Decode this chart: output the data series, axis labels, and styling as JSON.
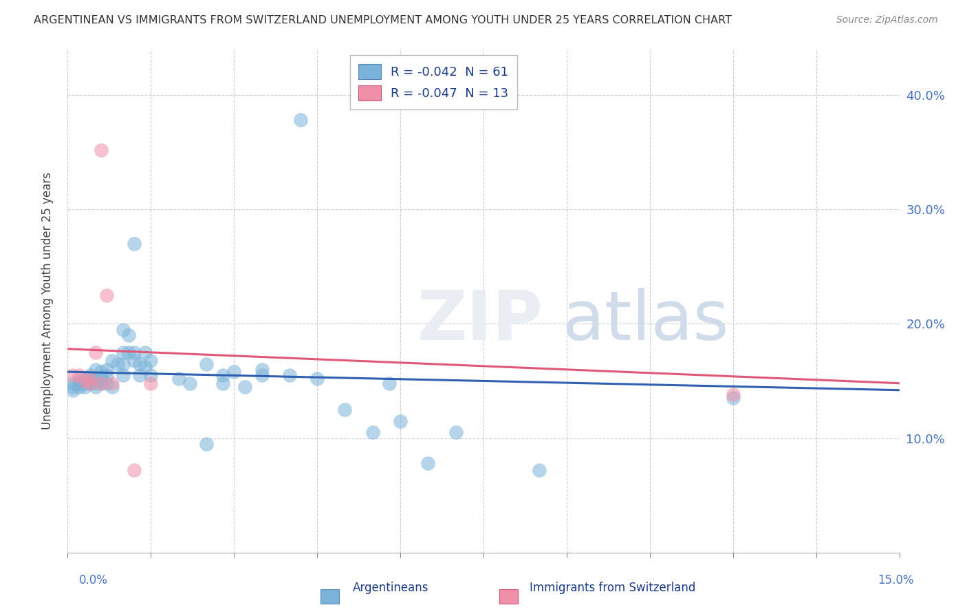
{
  "title": "ARGENTINEAN VS IMMIGRANTS FROM SWITZERLAND UNEMPLOYMENT AMONG YOUTH UNDER 25 YEARS CORRELATION CHART",
  "source": "Source: ZipAtlas.com",
  "ylabel": "Unemployment Among Youth under 25 years",
  "x_min": 0.0,
  "x_max": 0.15,
  "y_min": 0.0,
  "y_max": 0.44,
  "legend_entry1": "R = -0.042  N = 61",
  "legend_entry2": "R = -0.047  N = 13",
  "legend_label1": "Argentineans",
  "legend_label2": "Immigrants from Switzerland",
  "argentina_scatter": [
    [
      0.001,
      0.148
    ],
    [
      0.001,
      0.145
    ],
    [
      0.001,
      0.142
    ],
    [
      0.002,
      0.148
    ],
    [
      0.002,
      0.15
    ],
    [
      0.002,
      0.145
    ],
    [
      0.003,
      0.152
    ],
    [
      0.003,
      0.148
    ],
    [
      0.003,
      0.145
    ],
    [
      0.004,
      0.155
    ],
    [
      0.004,
      0.148
    ],
    [
      0.004,
      0.152
    ],
    [
      0.005,
      0.16
    ],
    [
      0.005,
      0.148
    ],
    [
      0.005,
      0.152
    ],
    [
      0.005,
      0.145
    ],
    [
      0.006,
      0.158
    ],
    [
      0.006,
      0.148
    ],
    [
      0.006,
      0.152
    ],
    [
      0.007,
      0.155
    ],
    [
      0.007,
      0.148
    ],
    [
      0.007,
      0.16
    ],
    [
      0.008,
      0.168
    ],
    [
      0.008,
      0.145
    ],
    [
      0.009,
      0.165
    ],
    [
      0.01,
      0.195
    ],
    [
      0.01,
      0.175
    ],
    [
      0.01,
      0.155
    ],
    [
      0.01,
      0.165
    ],
    [
      0.011,
      0.19
    ],
    [
      0.011,
      0.175
    ],
    [
      0.012,
      0.27
    ],
    [
      0.012,
      0.175
    ],
    [
      0.012,
      0.168
    ],
    [
      0.013,
      0.155
    ],
    [
      0.013,
      0.165
    ],
    [
      0.014,
      0.162
    ],
    [
      0.014,
      0.175
    ],
    [
      0.015,
      0.168
    ],
    [
      0.015,
      0.155
    ],
    [
      0.02,
      0.152
    ],
    [
      0.022,
      0.148
    ],
    [
      0.025,
      0.165
    ],
    [
      0.025,
      0.095
    ],
    [
      0.028,
      0.155
    ],
    [
      0.028,
      0.148
    ],
    [
      0.03,
      0.158
    ],
    [
      0.032,
      0.145
    ],
    [
      0.035,
      0.155
    ],
    [
      0.035,
      0.16
    ],
    [
      0.04,
      0.155
    ],
    [
      0.042,
      0.378
    ],
    [
      0.045,
      0.152
    ],
    [
      0.05,
      0.125
    ],
    [
      0.055,
      0.105
    ],
    [
      0.058,
      0.148
    ],
    [
      0.06,
      0.115
    ],
    [
      0.065,
      0.078
    ],
    [
      0.07,
      0.105
    ],
    [
      0.085,
      0.072
    ],
    [
      0.12,
      0.135
    ]
  ],
  "swiss_scatter": [
    [
      0.001,
      0.155
    ],
    [
      0.002,
      0.155
    ],
    [
      0.003,
      0.15
    ],
    [
      0.004,
      0.152
    ],
    [
      0.004,
      0.148
    ],
    [
      0.005,
      0.175
    ],
    [
      0.006,
      0.352
    ],
    [
      0.006,
      0.148
    ],
    [
      0.007,
      0.225
    ],
    [
      0.008,
      0.148
    ],
    [
      0.012,
      0.072
    ],
    [
      0.015,
      0.148
    ],
    [
      0.12,
      0.138
    ]
  ],
  "trend_arg_x0": 0.0,
  "trend_arg_y0": 0.158,
  "trend_arg_x1": 0.15,
  "trend_arg_y1": 0.142,
  "trend_swiss_x0": 0.0,
  "trend_swiss_y0": 0.178,
  "trend_swiss_x1": 0.15,
  "trend_swiss_y1": 0.148,
  "dot_color_argentina": "#7ab3d9",
  "dot_color_swiss": "#f090a8",
  "trend_color_argentina": "#3060b0",
  "trend_color_swiss": "#e05878",
  "background_color": "#ffffff",
  "grid_color": "#c8c8c8",
  "y_ticks": [
    0.1,
    0.2,
    0.3,
    0.4
  ],
  "y_tick_labels": [
    "10.0%",
    "20.0%",
    "30.0%",
    "40.0%"
  ]
}
